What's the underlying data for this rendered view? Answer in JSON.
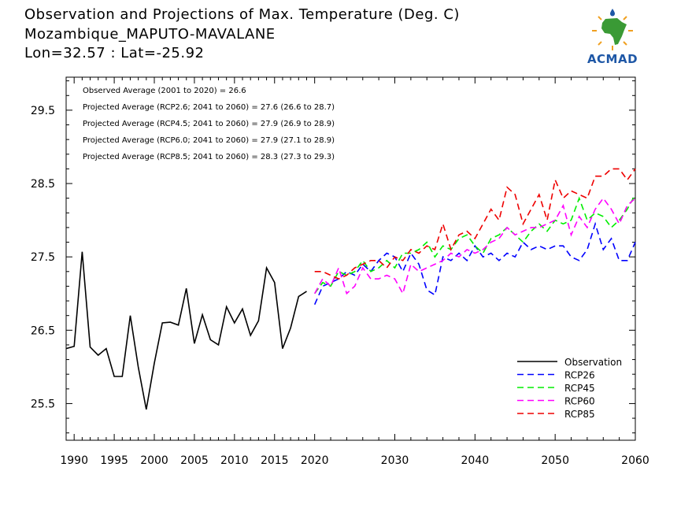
{
  "header": {
    "title": "Observation and Projections of Max. Temperature (Deg. C)",
    "station": "Mozambique_MAPUTO-MAVALANE",
    "coords": "Lon=32.57 : Lat=-25.92"
  },
  "logo": {
    "text": "ACMAD",
    "icon": "africa-continent-logo"
  },
  "chart_data": {
    "type": "line",
    "xlim": [
      1989,
      2060
    ],
    "ylim": [
      25.0,
      29.95
    ],
    "x_ticks": [
      "1990",
      "1995",
      "2000",
      "2005",
      "2010",
      "2015",
      "2020",
      "2030",
      "2040",
      "2050",
      "2060"
    ],
    "y_ticks": [
      "25.5",
      "26.5",
      "27.5",
      "28.5",
      "29.5"
    ],
    "annotations": [
      "Observed Average (2001 to 2020) = 26.6",
      "Projected Average (RCP2.6; 2041 to 2060) = 27.6 (26.6 to 28.7)",
      "Projected Average (RCP4.5; 2041 to 2060) = 27.9 (26.9 to 28.9)",
      "Projected Average (RCP6.0; 2041 to 2060) = 27.9 (27.1 to 28.9)",
      "Projected Average (RCP8.5; 2041 to 2060) = 28.3 (27.3 to 29.3)"
    ],
    "legend_position": "bottom-right",
    "series": [
      {
        "name": "Observation",
        "color": "#000000",
        "dashed": false,
        "x": [
          1989,
          1990,
          1991,
          1992,
          1993,
          1994,
          1995,
          1996,
          1997,
          1998,
          1999,
          2000,
          2001,
          2002,
          2003,
          2004,
          2005,
          2006,
          2007,
          2008,
          2009,
          2010,
          2011,
          2012,
          2013,
          2014,
          2015,
          2016,
          2017,
          2018,
          2019
        ],
        "y": [
          26.25,
          26.28,
          27.57,
          26.27,
          26.16,
          26.25,
          25.87,
          25.87,
          26.7,
          26.0,
          25.42,
          26.05,
          26.6,
          26.61,
          26.57,
          27.07,
          26.32,
          26.71,
          26.37,
          26.3,
          26.82,
          26.6,
          26.79,
          26.43,
          26.63,
          27.35,
          27.15,
          26.25,
          26.53,
          26.96,
          27.03
        ]
      },
      {
        "name": "RCP26",
        "color": "#0000ff",
        "dashed": true,
        "x": [
          2020,
          2021,
          2022,
          2023,
          2024,
          2025,
          2026,
          2027,
          2028,
          2029,
          2030,
          2031,
          2032,
          2033,
          2034,
          2035,
          2036,
          2037,
          2038,
          2039,
          2040,
          2041,
          2042,
          2043,
          2044,
          2045,
          2046,
          2047,
          2048,
          2049,
          2050,
          2051,
          2052,
          2053,
          2054,
          2055,
          2056,
          2057,
          2058,
          2059,
          2060
        ],
        "y": [
          26.85,
          27.1,
          27.15,
          27.2,
          27.3,
          27.25,
          27.4,
          27.3,
          27.45,
          27.55,
          27.5,
          27.3,
          27.55,
          27.4,
          27.05,
          26.98,
          27.5,
          27.45,
          27.55,
          27.45,
          27.65,
          27.5,
          27.55,
          27.45,
          27.55,
          27.5,
          27.7,
          27.6,
          27.65,
          27.6,
          27.65,
          27.65,
          27.5,
          27.45,
          27.6,
          27.95,
          27.6,
          27.75,
          27.45,
          27.45,
          27.7
        ]
      },
      {
        "name": "RCP45",
        "color": "#00ee00",
        "dashed": true,
        "x": [
          2020,
          2021,
          2022,
          2023,
          2024,
          2025,
          2026,
          2027,
          2028,
          2029,
          2030,
          2031,
          2032,
          2033,
          2034,
          2035,
          2036,
          2037,
          2038,
          2039,
          2040,
          2041,
          2042,
          2043,
          2044,
          2045,
          2046,
          2047,
          2048,
          2049,
          2050,
          2051,
          2052,
          2053,
          2054,
          2055,
          2056,
          2057,
          2058,
          2059,
          2060
        ],
        "y": [
          27.0,
          27.15,
          27.1,
          27.3,
          27.25,
          27.3,
          27.45,
          27.3,
          27.35,
          27.45,
          27.35,
          27.55,
          27.55,
          27.6,
          27.7,
          27.5,
          27.65,
          27.6,
          27.75,
          27.8,
          27.65,
          27.55,
          27.75,
          27.8,
          27.9,
          27.8,
          27.7,
          27.85,
          27.95,
          27.85,
          28.0,
          27.95,
          28.0,
          28.3,
          28.0,
          28.1,
          28.05,
          27.9,
          28.0,
          28.15,
          28.35
        ]
      },
      {
        "name": "RCP60",
        "color": "#ff00ff",
        "dashed": true,
        "x": [
          2020,
          2021,
          2022,
          2023,
          2024,
          2025,
          2026,
          2027,
          2028,
          2029,
          2030,
          2031,
          2032,
          2033,
          2034,
          2035,
          2036,
          2037,
          2038,
          2039,
          2040,
          2041,
          2042,
          2043,
          2044,
          2045,
          2046,
          2047,
          2048,
          2049,
          2050,
          2051,
          2052,
          2053,
          2054,
          2055,
          2056,
          2057,
          2058,
          2059,
          2060
        ],
        "y": [
          27.0,
          27.2,
          27.1,
          27.35,
          27.0,
          27.1,
          27.35,
          27.2,
          27.2,
          27.25,
          27.2,
          27.0,
          27.4,
          27.3,
          27.35,
          27.4,
          27.45,
          27.55,
          27.5,
          27.6,
          27.55,
          27.6,
          27.7,
          27.75,
          27.9,
          27.8,
          27.85,
          27.9,
          27.9,
          27.95,
          28.0,
          28.2,
          27.8,
          28.05,
          27.9,
          28.15,
          28.3,
          28.15,
          27.95,
          28.2,
          28.3
        ]
      },
      {
        "name": "RCP85",
        "color": "#ee0000",
        "dashed": true,
        "x": [
          2020,
          2021,
          2022,
          2023,
          2024,
          2025,
          2026,
          2027,
          2028,
          2029,
          2030,
          2031,
          2032,
          2033,
          2034,
          2035,
          2036,
          2037,
          2038,
          2039,
          2040,
          2041,
          2042,
          2043,
          2044,
          2045,
          2046,
          2047,
          2048,
          2049,
          2050,
          2051,
          2052,
          2053,
          2054,
          2055,
          2056,
          2057,
          2058,
          2059,
          2060
        ],
        "y": [
          27.3,
          27.3,
          27.25,
          27.2,
          27.25,
          27.35,
          27.4,
          27.45,
          27.45,
          27.35,
          27.5,
          27.45,
          27.6,
          27.55,
          27.65,
          27.6,
          27.95,
          27.6,
          27.8,
          27.85,
          27.75,
          27.95,
          28.15,
          28.0,
          28.45,
          28.35,
          27.95,
          28.15,
          28.35,
          28.0,
          28.55,
          28.3,
          28.4,
          28.35,
          28.3,
          28.6,
          28.6,
          28.7,
          28.7,
          28.55,
          28.7
        ]
      }
    ]
  }
}
